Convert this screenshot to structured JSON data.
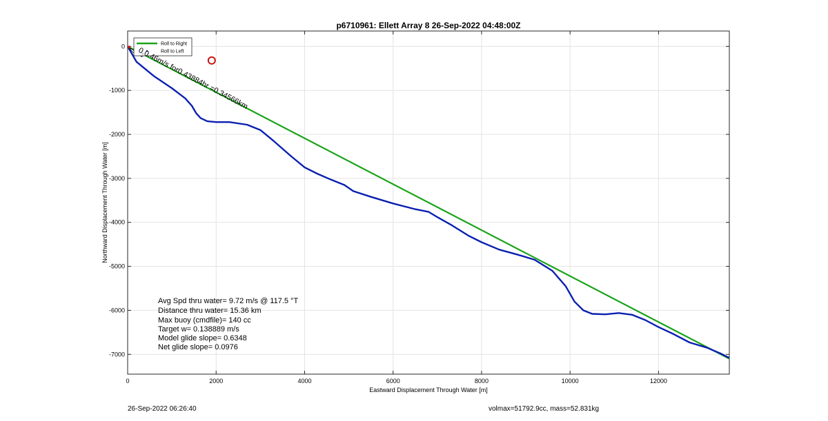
{
  "chart_data": {
    "type": "line",
    "title": "p6710961: Ellett Array 8 26-Sep-2022 04:48:00Z",
    "xlabel": "Eastward Displacement Through Water [m]",
    "ylabel": "Northward Displacement Through Water [m]",
    "xlim": [
      0,
      13600
    ],
    "ylim": [
      -7450,
      350
    ],
    "xticks": [
      0,
      2000,
      4000,
      6000,
      8000,
      10000,
      12000
    ],
    "yticks": [
      0,
      -1000,
      -2000,
      -3000,
      -4000,
      -5000,
      -6000,
      -7000
    ],
    "grid": true,
    "legend_position": "top-left",
    "legend": [
      "Roll to Right",
      "Roll to Left"
    ],
    "series": [
      {
        "name": "Roll to Right",
        "color": "#1aa31a",
        "x": [
          0,
          13600
        ],
        "y": [
          0,
          -7100
        ]
      },
      {
        "name": "Roll to Left",
        "color": "#0a1fb0",
        "x": [
          0,
          200,
          600,
          1000,
          1300,
          1450,
          1550,
          1650,
          1800,
          2000,
          2300,
          2700,
          3000,
          3300,
          3700,
          4000,
          4300,
          4600,
          4900,
          5100,
          5500,
          6000,
          6500,
          6800,
          7000,
          7300,
          7700,
          8000,
          8400,
          8800,
          9200,
          9600,
          9900,
          10100,
          10300,
          10500,
          10800,
          11100,
          11400,
          11700,
          12000,
          12300,
          12700,
          13100,
          13400,
          13600
        ],
        "y": [
          0,
          -350,
          -680,
          -950,
          -1180,
          -1350,
          -1520,
          -1630,
          -1700,
          -1720,
          -1720,
          -1780,
          -1900,
          -2150,
          -2500,
          -2750,
          -2900,
          -3030,
          -3150,
          -3290,
          -3420,
          -3570,
          -3700,
          -3760,
          -3880,
          -4050,
          -4300,
          -4450,
          -4620,
          -4730,
          -4850,
          -5100,
          -5450,
          -5800,
          -6000,
          -6080,
          -6090,
          -6060,
          -6100,
          -6220,
          -6380,
          -6520,
          -6730,
          -6850,
          -6980,
          -7080
        ]
      }
    ],
    "annotations": [
      {
        "text": "Avg Spd thru water=  9.72 m/s @ 117.5 °T"
      },
      {
        "text": "Distance thru water= 15.36 km"
      },
      {
        "text": "Max buoy (cmdfile)= 140 cc"
      },
      {
        "text": "Target w= 0.138889 m/s"
      },
      {
        "text": "Model glide slope= 0.6348"
      },
      {
        "text": "Net glide slope= 0.0976"
      }
    ],
    "current_label": "0.0.46m/s for0.43884hr =0.34566km",
    "target_marker": {
      "x": 1900,
      "y": -320,
      "color": "#c81414"
    }
  },
  "footer": {
    "left": "26-Sep-2022 06:26:40",
    "right": "volmax=51792.9cc, mass=52.831kg"
  }
}
